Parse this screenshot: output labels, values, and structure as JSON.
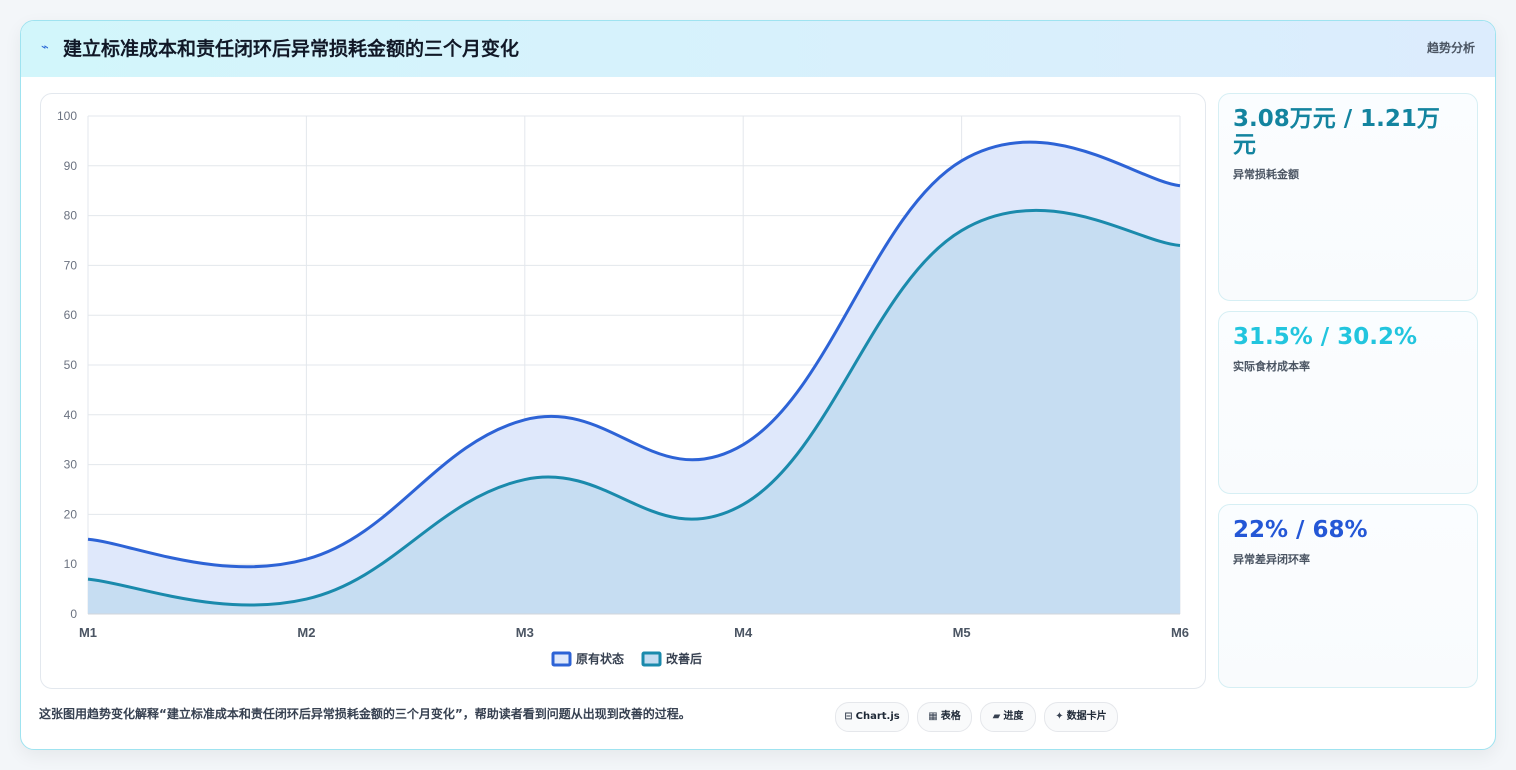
{
  "header": {
    "icon": "chart-line-icon",
    "title": "建立标准成本和责任闭环后异常损耗金额的三个月变化",
    "tag": "趋势分析"
  },
  "chart_data": {
    "type": "area",
    "categories": [
      "M1",
      "M2",
      "M3",
      "M4",
      "M5",
      "M6"
    ],
    "ylim": [
      0,
      100
    ],
    "yticks": [
      0,
      10,
      20,
      30,
      40,
      50,
      60,
      70,
      80,
      90,
      100
    ],
    "grid": true,
    "legend_position": "bottom",
    "series": [
      {
        "name": "原有状态",
        "color": "#2d63d6",
        "fill": "#dfe8fb",
        "values": [
          15,
          11,
          39,
          34,
          91,
          86
        ]
      },
      {
        "name": "改善后",
        "color": "#1a8aac",
        "fill": "#c3dcf1",
        "values": [
          7,
          3,
          27,
          22,
          77,
          74
        ]
      }
    ]
  },
  "stats": [
    {
      "value": "3.08万元 / 1.21万元",
      "label": "异常损耗金额",
      "color": "#13849f"
    },
    {
      "value": "31.5% / 30.2%",
      "label": "实际食材成本率",
      "color": "#22c5de"
    },
    {
      "value": "22% / 68%",
      "label": "异常差异闭环率",
      "color": "#2457d6"
    }
  ],
  "footer": {
    "description": "这张图用趋势变化解释“建立标准成本和责任闭环后异常损耗金额的三个月变化”，帮助读者看到问题从出现到改善的过程。",
    "chips": [
      {
        "icon": "table-icon",
        "glyph": "⊟",
        "label": "Chart.js"
      },
      {
        "icon": "grid-icon",
        "glyph": "▦",
        "label": "表格"
      },
      {
        "icon": "progress-icon",
        "glyph": "▰",
        "label": "进度"
      },
      {
        "icon": "sparkle-icon",
        "glyph": "✦",
        "label": "数据卡片"
      }
    ]
  }
}
